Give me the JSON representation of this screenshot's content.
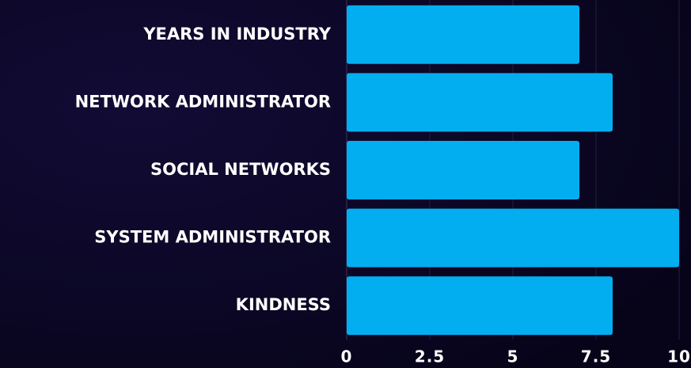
{
  "chart_data": {
    "type": "bar",
    "orientation": "horizontal",
    "categories": [
      "YEARS IN INDUSTRY",
      "NETWORK ADMINISTRATOR",
      "SOCIAL NETWORKS",
      "SYSTEM ADMINISTRATOR",
      "KINDNESS"
    ],
    "values": [
      7,
      8,
      7,
      10,
      8
    ],
    "color": "#03aef0",
    "xlim": [
      0,
      10
    ],
    "xticks": [
      0,
      2.5,
      5,
      7.5,
      10
    ],
    "grid": true
  }
}
